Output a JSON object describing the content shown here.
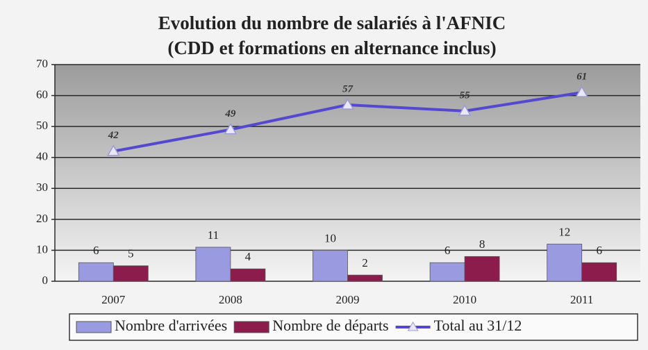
{
  "chart_data": {
    "type": "bar",
    "title": "Evolution du nombre de salariés à l'AFNIC",
    "subtitle": "(CDD et formations en alternance inclus)",
    "categories": [
      "2007",
      "2008",
      "2009",
      "2010",
      "2011"
    ],
    "series": [
      {
        "name": "Nombre d'arrivées",
        "color": "#9a9ae0",
        "values": [
          6,
          11,
          10,
          6,
          12
        ]
      },
      {
        "name": "Nombre de départs",
        "color": "#8c1c4c",
        "values": [
          5,
          4,
          2,
          8,
          6
        ]
      },
      {
        "name": "Total au 31/12",
        "color": "#5548d0",
        "type": "line",
        "values": [
          42,
          49,
          57,
          55,
          61
        ]
      }
    ],
    "ylim": [
      0,
      70
    ],
    "yticks": [
      0,
      10,
      20,
      30,
      40,
      50,
      60,
      70
    ],
    "grid": true,
    "legend": "bottom"
  }
}
